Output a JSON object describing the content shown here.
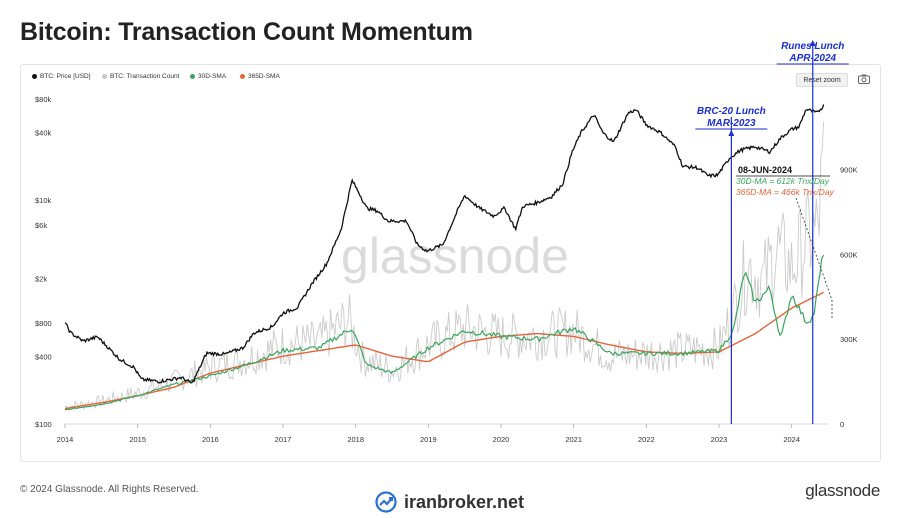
{
  "title": "Bitcoin: Transaction Count Momentum",
  "legend": [
    {
      "label": "BTC: Price [USD]",
      "color": "#111111"
    },
    {
      "label": "BTC: Transaction Count",
      "color": "#c8c8c8"
    },
    {
      "label": "30D-SMA",
      "color": "#3aa55c"
    },
    {
      "label": "365D-SMA",
      "color": "#e8623a"
    }
  ],
  "toolbar": {
    "reset_zoom": "Reset zoom",
    "camera_icon": "camera-icon"
  },
  "watermark": "glassnode",
  "footer": {
    "copyright": "© 2024 Glassnode. All Rights Reserved.",
    "brand": "glassnode",
    "site": "iranbroker.net",
    "site_icon": "trend-chart-icon"
  },
  "annotations": {
    "brc20": {
      "label1": "BRC-20 Lunch",
      "label2": "MAR-2023",
      "year": 2023.17
    },
    "runes": {
      "label1": "Runes Lunch",
      "label2": "APR-2024",
      "year": 2024.29
    },
    "date": "08-JUN-2024",
    "ma30": "30D-MA = 612k Tnx/Day",
    "ma365": "365D-MA = 466k Tnx/Day"
  },
  "colors": {
    "price": "#111111",
    "count": "#c8c8c8",
    "ma30": "#3aa55c",
    "ma365": "#e8623a",
    "annotation": "#1a2fd6"
  },
  "chart_data": {
    "type": "line",
    "x_axis": {
      "type": "date",
      "ticks": [
        "2014",
        "2015",
        "2016",
        "2017",
        "2018",
        "2019",
        "2020",
        "2021",
        "2022",
        "2023",
        "2024"
      ],
      "range": [
        2014.0,
        2024.5
      ]
    },
    "y_left": {
      "type": "log",
      "unit": "USD",
      "ticks": [
        "$100",
        "$400",
        "$800",
        "$2k",
        "$6k",
        "$10k",
        "$40k",
        "$80k"
      ],
      "tick_values": [
        100,
        400,
        800,
        2000,
        6000,
        10000,
        40000,
        80000
      ],
      "range": [
        100,
        80000
      ]
    },
    "y_right": {
      "type": "linear",
      "ticks": [
        "0",
        "300K",
        "600K",
        "900K"
      ],
      "tick_values": [
        0,
        300000,
        600000,
        900000
      ],
      "range": [
        0,
        1150000
      ]
    },
    "series": [
      {
        "name": "BTC: Price [USD]",
        "axis": "left",
        "x": [
          2014.0,
          2014.08,
          2014.25,
          2014.45,
          2014.75,
          2014.95,
          2015.05,
          2015.3,
          2015.6,
          2015.75,
          2015.95,
          2016.2,
          2016.45,
          2016.6,
          2016.85,
          2017.0,
          2017.2,
          2017.4,
          2017.6,
          2017.8,
          2017.95,
          2018.05,
          2018.15,
          2018.3,
          2018.45,
          2018.7,
          2018.85,
          2018.98,
          2019.2,
          2019.4,
          2019.5,
          2019.7,
          2019.9,
          2020.05,
          2020.2,
          2020.3,
          2020.5,
          2020.7,
          2020.85,
          2020.98,
          2021.1,
          2021.28,
          2021.4,
          2021.55,
          2021.75,
          2021.86,
          2022.0,
          2022.2,
          2022.4,
          2022.5,
          2022.7,
          2022.85,
          2022.98,
          2023.15,
          2023.3,
          2023.5,
          2023.7,
          2023.85,
          2024.0,
          2024.1,
          2024.2,
          2024.35,
          2024.44
        ],
        "values": [
          800,
          650,
          550,
          600,
          380,
          320,
          250,
          240,
          260,
          230,
          430,
          420,
          480,
          650,
          740,
          980,
          1100,
          1800,
          2700,
          5500,
          15000,
          11500,
          8500,
          8000,
          6500,
          6500,
          4000,
          3500,
          4000,
          8000,
          11000,
          8500,
          7200,
          8500,
          5500,
          8800,
          9500,
          10800,
          14000,
          27000,
          40000,
          58000,
          40000,
          33000,
          60000,
          64000,
          47000,
          40000,
          30000,
          20000,
          19500,
          16500,
          16700,
          24000,
          28000,
          30000,
          27000,
          36000,
          43000,
          45000,
          65000,
          60000,
          70000
        ]
      },
      {
        "name": "BTC: Transaction Count",
        "axis": "right",
        "x": [
          2014.0,
          2014.5,
          2015.0,
          2015.5,
          2016.0,
          2016.5,
          2017.0,
          2017.5,
          2017.9,
          2018.1,
          2018.5,
          2019.0,
          2019.5,
          2020.0,
          2020.5,
          2021.0,
          2021.5,
          2022.0,
          2022.5,
          2023.0,
          2023.2,
          2023.4,
          2023.6,
          2023.8,
          2024.0,
          2024.2,
          2024.35,
          2024.44
        ],
        "values": [
          60000,
          80000,
          110000,
          150000,
          200000,
          230000,
          280000,
          290000,
          370000,
          230000,
          190000,
          280000,
          340000,
          310000,
          310000,
          330000,
          240000,
          250000,
          260000,
          270000,
          400000,
          560000,
          500000,
          620000,
          550000,
          650000,
          680000,
          900000
        ]
      },
      {
        "name": "30D-SMA",
        "axis": "right",
        "x": [
          2014.0,
          2014.5,
          2015.0,
          2015.5,
          2016.0,
          2016.5,
          2017.0,
          2017.5,
          2017.95,
          2018.15,
          2018.5,
          2019.0,
          2019.5,
          2020.0,
          2020.5,
          2021.0,
          2021.5,
          2022.0,
          2022.5,
          2023.0,
          2023.2,
          2023.35,
          2023.5,
          2023.7,
          2023.85,
          2024.0,
          2024.2,
          2024.3,
          2024.44
        ],
        "values": [
          50000,
          70000,
          100000,
          140000,
          170000,
          210000,
          260000,
          270000,
          340000,
          210000,
          180000,
          270000,
          330000,
          310000,
          300000,
          340000,
          250000,
          250000,
          250000,
          260000,
          330000,
          540000,
          430000,
          480000,
          300000,
          460000,
          360000,
          380000,
          612000
        ]
      },
      {
        "name": "365D-SMA",
        "axis": "right",
        "x": [
          2014.0,
          2014.5,
          2015.0,
          2015.5,
          2016.0,
          2016.5,
          2017.0,
          2017.5,
          2018.0,
          2018.5,
          2019.0,
          2019.5,
          2020.0,
          2020.5,
          2021.0,
          2021.5,
          2022.0,
          2022.5,
          2023.0,
          2023.5,
          2024.0,
          2024.44
        ],
        "values": [
          55000,
          75000,
          100000,
          130000,
          180000,
          210000,
          240000,
          260000,
          280000,
          240000,
          220000,
          290000,
          310000,
          320000,
          310000,
          280000,
          255000,
          250000,
          255000,
          320000,
          410000,
          466000
        ]
      }
    ]
  }
}
